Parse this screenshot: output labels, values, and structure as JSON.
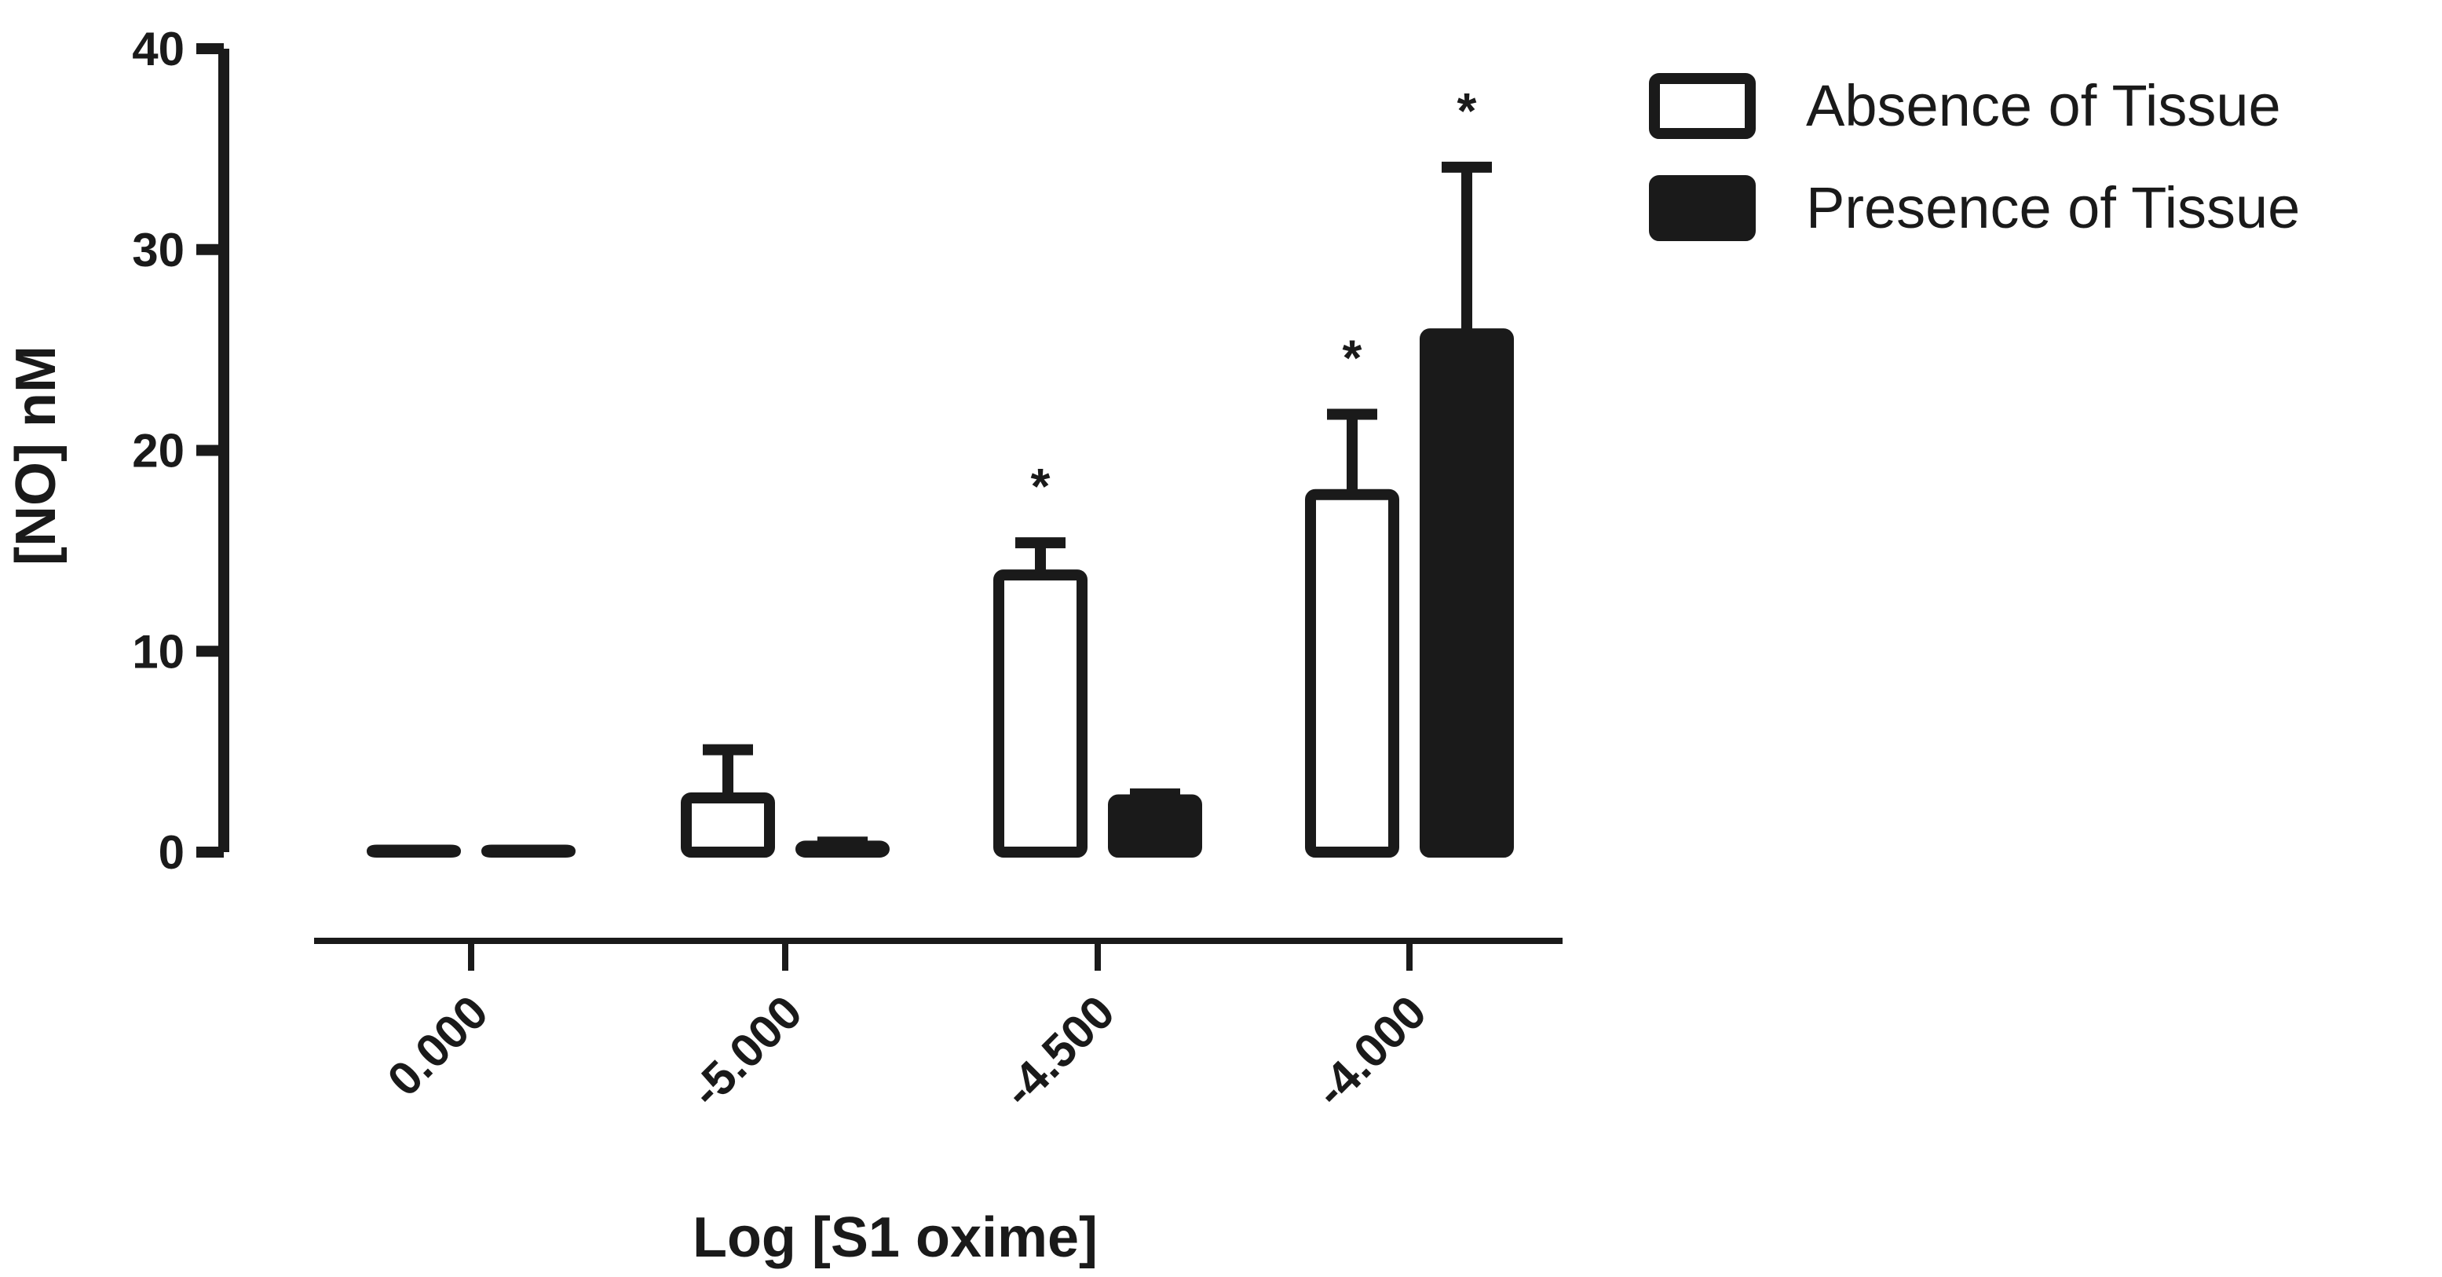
{
  "chart_data": {
    "type": "bar",
    "xlabel": "Log [S1 oxime]",
    "ylabel": "[NO] nM",
    "ylim": [
      0,
      40
    ],
    "yticks": [
      0,
      10,
      20,
      30,
      40
    ],
    "categories": [
      "0.000",
      "-5.000",
      "-4.500",
      "-4.000"
    ],
    "series": [
      {
        "name": "Absence of Tissue",
        "fill": "#ffffff",
        "values": [
          0.1,
          2.7,
          13.8,
          17.8
        ],
        "errors": [
          0,
          2.4,
          1.6,
          4.0
        ],
        "significance": [
          "",
          "",
          "*",
          "*"
        ]
      },
      {
        "name": "Presence of Tissue",
        "fill": "#1a1a1a",
        "values": [
          0.1,
          0.3,
          2.6,
          25.8
        ],
        "errors": [
          0,
          0.2,
          0.3,
          8.3
        ],
        "significance": [
          "",
          "",
          "",
          "*"
        ]
      }
    ],
    "legend_position": "top-right",
    "grid": false
  },
  "colors": {
    "ink": "#1a1a1a",
    "background": "#ffffff"
  }
}
